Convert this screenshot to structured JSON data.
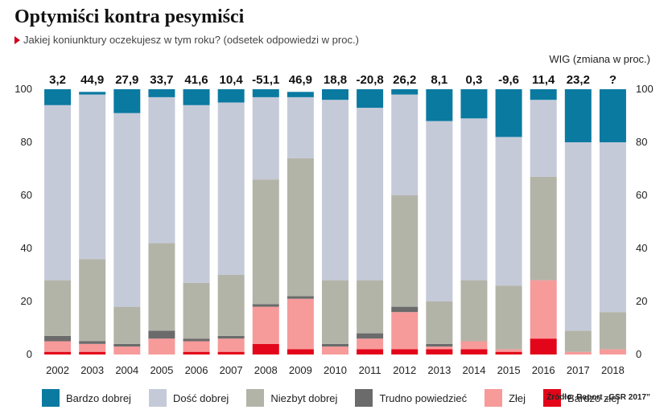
{
  "title": "Optymiści kontra pesymiści",
  "subtitle": "Jakiej koniunktury oczekujesz w tym roku? (odsetek odpowiedzi w proc.)",
  "wig_label": "WIG (zmiana w proc.)",
  "source": "Źródło: Raport „GSR 2017”",
  "colors": {
    "bardzo_dobrej": "#0a7aa1",
    "dosc_dobrej": "#c5cad9",
    "niezbyt_dobrej": "#b3b4a8",
    "trudno": "#6b6b6b",
    "zlej": "#f79a9a",
    "bardzo_zlej": "#e3061a"
  },
  "chart_data": {
    "type": "bar",
    "stacked": true,
    "categories": [
      "2002",
      "2003",
      "2004",
      "2005",
      "2006",
      "2007",
      "2008",
      "2009",
      "2010",
      "2011",
      "2012",
      "2013",
      "2014",
      "2015",
      "2016",
      "2017",
      "2018"
    ],
    "ylim": [
      0,
      100
    ],
    "yticks": [
      0,
      20,
      40,
      60,
      80,
      100
    ],
    "wig_change": [
      "3,2",
      "44,9",
      "27,9",
      "33,7",
      "41,6",
      "10,4",
      "-51,1",
      "46,9",
      "18,8",
      "-20,8",
      "26,2",
      "8,1",
      "0,3",
      "-9,6",
      "11,4",
      "23,2",
      "?"
    ],
    "series": [
      {
        "name": "Bardzo złej",
        "color_key": "bardzo_zlej",
        "values": [
          1,
          1,
          0,
          0,
          1,
          1,
          4,
          2,
          0,
          2,
          2,
          2,
          2,
          1,
          6,
          0,
          0
        ]
      },
      {
        "name": "Złej",
        "color_key": "zlej",
        "values": [
          4,
          3,
          3,
          6,
          4,
          5,
          14,
          19,
          3,
          4,
          14,
          1,
          3,
          1,
          22,
          1,
          2
        ]
      },
      {
        "name": "Trudno powiedzieć",
        "color_key": "trudno",
        "values": [
          2,
          1,
          1,
          3,
          1,
          1,
          1,
          1,
          1,
          2,
          2,
          1,
          0,
          0,
          0,
          0,
          0
        ]
      },
      {
        "name": "Niezbyt dobrej",
        "color_key": "niezbyt_dobrej",
        "values": [
          21,
          31,
          14,
          33,
          21,
          23,
          47,
          52,
          24,
          20,
          42,
          16,
          23,
          24,
          39,
          8,
          14
        ]
      },
      {
        "name": "Dość dobrej",
        "color_key": "dosc_dobrej",
        "values": [
          66,
          62,
          73,
          55,
          67,
          65,
          31,
          23,
          68,
          65,
          38,
          68,
          61,
          56,
          29,
          71,
          64
        ]
      },
      {
        "name": "Bardzo dobrej",
        "color_key": "bardzo_dobrej",
        "values": [
          6,
          1,
          9,
          3,
          6,
          5,
          3,
          2,
          4,
          7,
          2,
          12,
          11,
          18,
          4,
          20,
          20
        ]
      }
    ],
    "legend_order": [
      "Bardzo dobrej",
      "Dość dobrej",
      "Niezbyt dobrej",
      "Trudno powiedzieć",
      "Złej",
      "Bardzo złej"
    ],
    "legend_placement": "bottom"
  }
}
